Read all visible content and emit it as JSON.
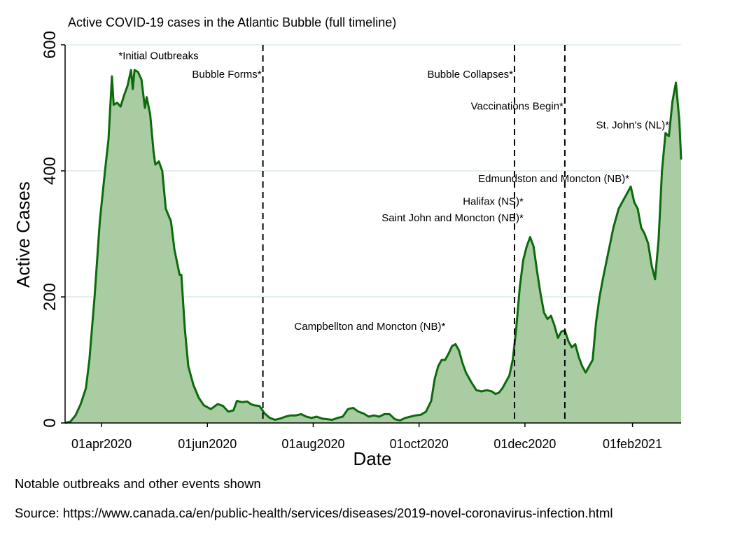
{
  "chart_data": {
    "type": "area",
    "title": "Active COVID-19 cases in the Atlantic Bubble (full timeline)",
    "xlabel": "Date",
    "ylabel": "Active Cases",
    "x_start": "2020-03-11",
    "x_end": "2021-03-01",
    "ylim": [
      0,
      600
    ],
    "yticks": [
      0,
      200,
      400,
      600
    ],
    "xticks": [
      {
        "date": "2020-04-01",
        "label": "01apr2020"
      },
      {
        "date": "2020-06-01",
        "label": "01jun2020"
      },
      {
        "date": "2020-08-01",
        "label": "01aug2020"
      },
      {
        "date": "2020-10-01",
        "label": "01oct2020"
      },
      {
        "date": "2020-12-01",
        "label": "01dec2020"
      },
      {
        "date": "2021-02-01",
        "label": "01feb2021"
      }
    ],
    "grid": true,
    "colors": {
      "line": "#0b6b0b",
      "fill": "#a9cca3",
      "grid": "#dcebe8"
    },
    "series": [
      {
        "points": [
          [
            "2020-03-11",
            0
          ],
          [
            "2020-03-14",
            2
          ],
          [
            "2020-03-17",
            12
          ],
          [
            "2020-03-20",
            30
          ],
          [
            "2020-03-23",
            55
          ],
          [
            "2020-03-25",
            100
          ],
          [
            "2020-03-28",
            200
          ],
          [
            "2020-03-31",
            320
          ],
          [
            "2020-04-03",
            400
          ],
          [
            "2020-04-05",
            450
          ],
          [
            "2020-04-07",
            550
          ],
          [
            "2020-04-08",
            505
          ],
          [
            "2020-04-10",
            508
          ],
          [
            "2020-04-12",
            502
          ],
          [
            "2020-04-14",
            520
          ],
          [
            "2020-04-16",
            535
          ],
          [
            "2020-04-18",
            560
          ],
          [
            "2020-04-19",
            530
          ],
          [
            "2020-04-20",
            560
          ],
          [
            "2020-04-22",
            557
          ],
          [
            "2020-04-24",
            545
          ],
          [
            "2020-04-26",
            500
          ],
          [
            "2020-04-27",
            517
          ],
          [
            "2020-04-29",
            490
          ],
          [
            "2020-05-01",
            430
          ],
          [
            "2020-05-02",
            410
          ],
          [
            "2020-05-04",
            415
          ],
          [
            "2020-05-06",
            400
          ],
          [
            "2020-05-08",
            340
          ],
          [
            "2020-05-11",
            320
          ],
          [
            "2020-05-13",
            275
          ],
          [
            "2020-05-16",
            235
          ],
          [
            "2020-05-17",
            235
          ],
          [
            "2020-05-19",
            150
          ],
          [
            "2020-05-21",
            90
          ],
          [
            "2020-05-24",
            60
          ],
          [
            "2020-05-27",
            40
          ],
          [
            "2020-05-30",
            28
          ],
          [
            "2020-06-03",
            22
          ],
          [
            "2020-06-07",
            30
          ],
          [
            "2020-06-10",
            27
          ],
          [
            "2020-06-13",
            18
          ],
          [
            "2020-06-16",
            20
          ],
          [
            "2020-06-18",
            35
          ],
          [
            "2020-06-21",
            33
          ],
          [
            "2020-06-24",
            34
          ],
          [
            "2020-06-26",
            30
          ],
          [
            "2020-06-28",
            28
          ],
          [
            "2020-07-01",
            27
          ],
          [
            "2020-07-04",
            15
          ],
          [
            "2020-07-07",
            8
          ],
          [
            "2020-07-10",
            5
          ],
          [
            "2020-07-13",
            7
          ],
          [
            "2020-07-16",
            10
          ],
          [
            "2020-07-19",
            12
          ],
          [
            "2020-07-22",
            12
          ],
          [
            "2020-07-25",
            14
          ],
          [
            "2020-07-28",
            10
          ],
          [
            "2020-07-31",
            8
          ],
          [
            "2020-08-03",
            10
          ],
          [
            "2020-08-06",
            7
          ],
          [
            "2020-08-09",
            6
          ],
          [
            "2020-08-12",
            5
          ],
          [
            "2020-08-15",
            8
          ],
          [
            "2020-08-18",
            10
          ],
          [
            "2020-08-21",
            22
          ],
          [
            "2020-08-24",
            24
          ],
          [
            "2020-08-27",
            18
          ],
          [
            "2020-08-30",
            15
          ],
          [
            "2020-09-02",
            10
          ],
          [
            "2020-09-05",
            12
          ],
          [
            "2020-09-08",
            10
          ],
          [
            "2020-09-11",
            14
          ],
          [
            "2020-09-14",
            14
          ],
          [
            "2020-09-17",
            6
          ],
          [
            "2020-09-20",
            4
          ],
          [
            "2020-09-23",
            8
          ],
          [
            "2020-09-26",
            10
          ],
          [
            "2020-09-29",
            12
          ],
          [
            "2020-10-02",
            13
          ],
          [
            "2020-10-05",
            18
          ],
          [
            "2020-10-08",
            35
          ],
          [
            "2020-10-10",
            70
          ],
          [
            "2020-10-12",
            90
          ],
          [
            "2020-10-14",
            100
          ],
          [
            "2020-10-16",
            100
          ],
          [
            "2020-10-18",
            110
          ],
          [
            "2020-10-20",
            122
          ],
          [
            "2020-10-22",
            125
          ],
          [
            "2020-10-24",
            115
          ],
          [
            "2020-10-26",
            95
          ],
          [
            "2020-10-28",
            80
          ],
          [
            "2020-10-31",
            65
          ],
          [
            "2020-11-03",
            52
          ],
          [
            "2020-11-06",
            50
          ],
          [
            "2020-11-09",
            52
          ],
          [
            "2020-11-12",
            50
          ],
          [
            "2020-11-14",
            46
          ],
          [
            "2020-11-16",
            48
          ],
          [
            "2020-11-18",
            55
          ],
          [
            "2020-11-20",
            65
          ],
          [
            "2020-11-22",
            75
          ],
          [
            "2020-11-24",
            100
          ],
          [
            "2020-11-26",
            150
          ],
          [
            "2020-11-28",
            215
          ],
          [
            "2020-11-30",
            258
          ],
          [
            "2020-12-02",
            280
          ],
          [
            "2020-12-04",
            295
          ],
          [
            "2020-12-06",
            280
          ],
          [
            "2020-12-08",
            240
          ],
          [
            "2020-12-10",
            205
          ],
          [
            "2020-12-12",
            175
          ],
          [
            "2020-12-14",
            165
          ],
          [
            "2020-12-16",
            170
          ],
          [
            "2020-12-18",
            155
          ],
          [
            "2020-12-20",
            135
          ],
          [
            "2020-12-22",
            145
          ],
          [
            "2020-12-24",
            147
          ],
          [
            "2020-12-26",
            130
          ],
          [
            "2020-12-28",
            120
          ],
          [
            "2020-12-30",
            125
          ],
          [
            "2021-01-01",
            105
          ],
          [
            "2021-01-03",
            90
          ],
          [
            "2021-01-05",
            80
          ],
          [
            "2021-01-07",
            90
          ],
          [
            "2021-01-09",
            100
          ],
          [
            "2021-01-11",
            160
          ],
          [
            "2021-01-13",
            200
          ],
          [
            "2021-01-15",
            230
          ],
          [
            "2021-01-18",
            270
          ],
          [
            "2021-01-21",
            310
          ],
          [
            "2021-01-24",
            340
          ],
          [
            "2021-01-27",
            355
          ],
          [
            "2021-01-29",
            365
          ],
          [
            "2021-01-31",
            375
          ],
          [
            "2021-02-02",
            350
          ],
          [
            "2021-02-04",
            340
          ],
          [
            "2021-02-06",
            310
          ],
          [
            "2021-02-08",
            300
          ],
          [
            "2021-02-10",
            285
          ],
          [
            "2021-02-12",
            250
          ],
          [
            "2021-02-14",
            228
          ],
          [
            "2021-02-16",
            290
          ],
          [
            "2021-02-18",
            400
          ],
          [
            "2021-02-20",
            460
          ],
          [
            "2021-02-22",
            455
          ],
          [
            "2021-02-24",
            510
          ],
          [
            "2021-02-26",
            540
          ],
          [
            "2021-02-28",
            480
          ],
          [
            "2021-03-01",
            418
          ]
        ]
      }
    ],
    "event_lines": [
      {
        "date": "2020-07-03",
        "label": "Bubble Forms*"
      },
      {
        "date": "2020-11-25",
        "label": "Bubble Collapses*"
      },
      {
        "date": "2020-12-24",
        "label": "Vaccinations Begin*"
      }
    ],
    "annotations": [
      {
        "text": "*Initial Outbreaks",
        "date": "2020-04-10",
        "value": 577,
        "anchor": "start"
      },
      {
        "text": "Bubble Forms*",
        "date": "2020-07-03",
        "value": 548,
        "anchor": "end"
      },
      {
        "text": "Bubble Collapses*",
        "date": "2020-11-25",
        "value": 548,
        "anchor": "end"
      },
      {
        "text": "Vaccinations Begin*",
        "date": "2020-12-24",
        "value": 497,
        "anchor": "end"
      },
      {
        "text": "St. John's (NL)*",
        "date": "2021-02-23",
        "value": 467,
        "anchor": "end"
      },
      {
        "text": "Edmundston and Moncton (NB)*",
        "date": "2021-01-31",
        "value": 382,
        "anchor": "end"
      },
      {
        "text": "Halifax (NS)*",
        "date": "2020-11-31",
        "value": 346,
        "anchor": "end"
      },
      {
        "text": "Saint John and Moncton (NB)*",
        "date": "2020-11-31",
        "value": 320,
        "anchor": "end"
      },
      {
        "text": "Campbellton and Moncton (NB)*",
        "date": "2020-10-17",
        "value": 148,
        "anchor": "end"
      }
    ]
  },
  "notes": {
    "line1": "Notable outbreaks and other events shown",
    "line2": "Source: https://www.canada.ca/en/public-health/services/diseases/2019-novel-coronavirus-infection.html"
  }
}
